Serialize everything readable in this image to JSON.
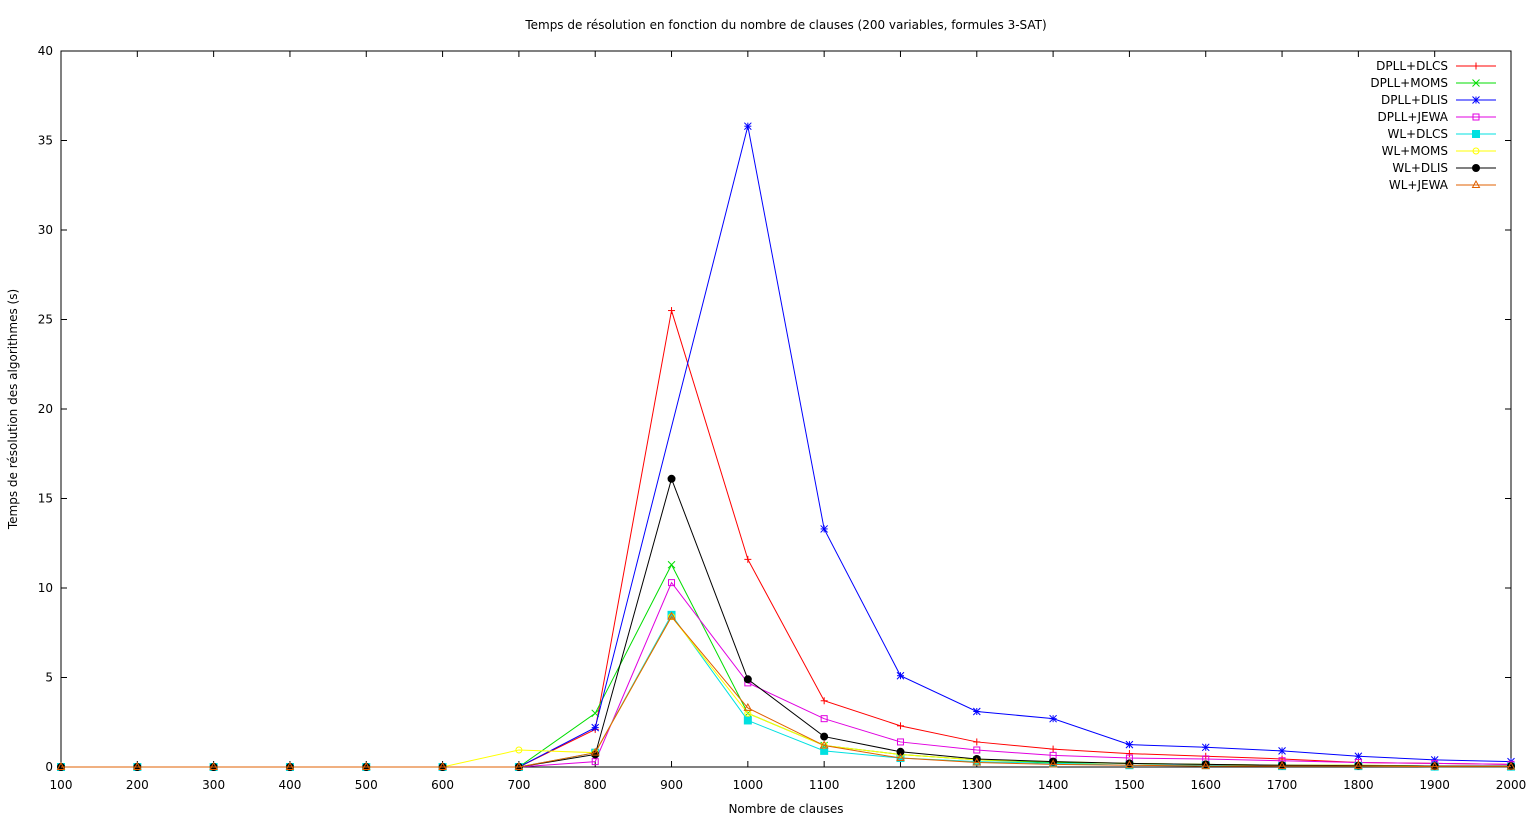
{
  "chart_data": {
    "type": "line",
    "title": "Temps de résolution en fonction du nombre de clauses (200 variables, formules 3-SAT)",
    "xlabel": "Nombre de clauses",
    "ylabel": "Temps de résolution des algorithmes (s)",
    "xlim": [
      100,
      2000
    ],
    "ylim": [
      0,
      40
    ],
    "x_ticks": [
      100,
      200,
      300,
      400,
      500,
      600,
      700,
      800,
      900,
      1000,
      1100,
      1200,
      1300,
      1400,
      1500,
      1600,
      1700,
      1800,
      1900,
      2000
    ],
    "y_ticks": [
      0,
      5,
      10,
      15,
      20,
      25,
      30,
      35,
      40
    ],
    "grid": false,
    "legend_position": "top-right",
    "series": [
      {
        "name": "DPLL+DLCS",
        "color": "#ff0000",
        "marker": "plus",
        "x": [
          100,
          200,
          300,
          400,
          500,
          600,
          700,
          800,
          900,
          1000,
          1100,
          1200,
          1300,
          1400,
          1500,
          1600,
          1700,
          1800,
          1900,
          2000
        ],
        "y": [
          0,
          0,
          0,
          0,
          0,
          0,
          0,
          2.1,
          25.5,
          11.6,
          3.7,
          2.3,
          1.4,
          1.0,
          0.75,
          0.6,
          0.45,
          0.25,
          0.2,
          0.15
        ]
      },
      {
        "name": "DPLL+MOMS",
        "color": "#00dd00",
        "marker": "cross",
        "x": [
          100,
          200,
          300,
          400,
          500,
          600,
          700,
          800,
          900,
          1000,
          1100,
          1200,
          1300,
          1400,
          1500,
          1600,
          1700,
          1800,
          1900,
          2000
        ],
        "y": [
          0,
          0,
          0,
          0,
          0,
          0,
          0,
          3.0,
          11.3,
          3.0,
          1.2,
          0.7,
          0.4,
          0.25,
          0.2,
          0.15,
          0.1,
          0.1,
          0.05,
          0.05
        ]
      },
      {
        "name": "DPLL+DLIS",
        "color": "#0000ff",
        "marker": "star",
        "x": [
          100,
          200,
          300,
          400,
          500,
          600,
          700,
          800,
          1000,
          1100,
          1200,
          1300,
          1400,
          1500,
          1600,
          1700,
          1800,
          1900,
          2000
        ],
        "y": [
          0,
          0,
          0,
          0,
          0,
          0,
          0,
          2.2,
          35.8,
          13.3,
          5.1,
          3.1,
          2.7,
          1.25,
          1.1,
          0.9,
          0.6,
          0.4,
          0.3
        ]
      },
      {
        "name": "DPLL+JEWA",
        "color": "#e000e0",
        "marker": "square-open",
        "x": [
          100,
          200,
          300,
          400,
          500,
          600,
          700,
          800,
          900,
          1000,
          1100,
          1200,
          1300,
          1400,
          1500,
          1600,
          1700,
          1800,
          1900,
          2000
        ],
        "y": [
          0,
          0,
          0,
          0,
          0,
          0,
          0,
          0.3,
          10.3,
          4.7,
          2.7,
          1.4,
          0.95,
          0.65,
          0.5,
          0.45,
          0.35,
          0.25,
          0.2,
          0.15
        ]
      },
      {
        "name": "WL+DLCS",
        "color": "#00e0e0",
        "marker": "square-filled",
        "x": [
          100,
          200,
          300,
          400,
          500,
          600,
          700,
          800,
          900,
          1000,
          1100,
          1200,
          1300,
          1400,
          1500,
          1600,
          1700,
          1800,
          1900,
          2000
        ],
        "y": [
          0,
          0,
          0,
          0,
          0,
          0,
          0,
          0.8,
          8.5,
          2.6,
          0.9,
          0.5,
          0.3,
          0.2,
          0.1,
          0.1,
          0.05,
          0.05,
          0.02,
          0.02
        ]
      },
      {
        "name": "WL+MOMS",
        "color": "#ffff00",
        "marker": "circle-open",
        "x": [
          100,
          200,
          300,
          400,
          500,
          600,
          700,
          800,
          900,
          1000,
          1100,
          1200,
          1300,
          1400,
          1500,
          1600,
          1700,
          1800,
          1900,
          2000
        ],
        "y": [
          0,
          0,
          0,
          0,
          0,
          0,
          0.95,
          0.8,
          8.4,
          3.0,
          1.2,
          0.7,
          0.4,
          0.3,
          0.2,
          0.15,
          0.1,
          0.1,
          0.05,
          0.05
        ]
      },
      {
        "name": "WL+DLIS",
        "color": "#000000",
        "marker": "circle-filled",
        "x": [
          100,
          200,
          300,
          400,
          500,
          600,
          700,
          800,
          900,
          1000,
          1100,
          1200,
          1300,
          1400,
          1500,
          1600,
          1700,
          1800,
          1900,
          2000
        ],
        "y": [
          0,
          0,
          0,
          0,
          0,
          0,
          0,
          0.7,
          16.1,
          4.9,
          1.7,
          0.85,
          0.45,
          0.3,
          0.2,
          0.15,
          0.1,
          0.08,
          0.05,
          0.05
        ]
      },
      {
        "name": "WL+JEWA",
        "color": "#e06000",
        "marker": "triangle-open",
        "x": [
          100,
          200,
          300,
          400,
          500,
          600,
          700,
          800,
          900,
          1000,
          1100,
          1200,
          1300,
          1400,
          1500,
          1600,
          1700,
          1800,
          1900,
          2000
        ],
        "y": [
          0,
          0,
          0,
          0,
          0,
          0,
          0,
          0.8,
          8.4,
          3.3,
          1.2,
          0.5,
          0.25,
          0.15,
          0.1,
          0.05,
          0.05,
          0.05,
          0.02,
          0.02
        ]
      }
    ]
  }
}
